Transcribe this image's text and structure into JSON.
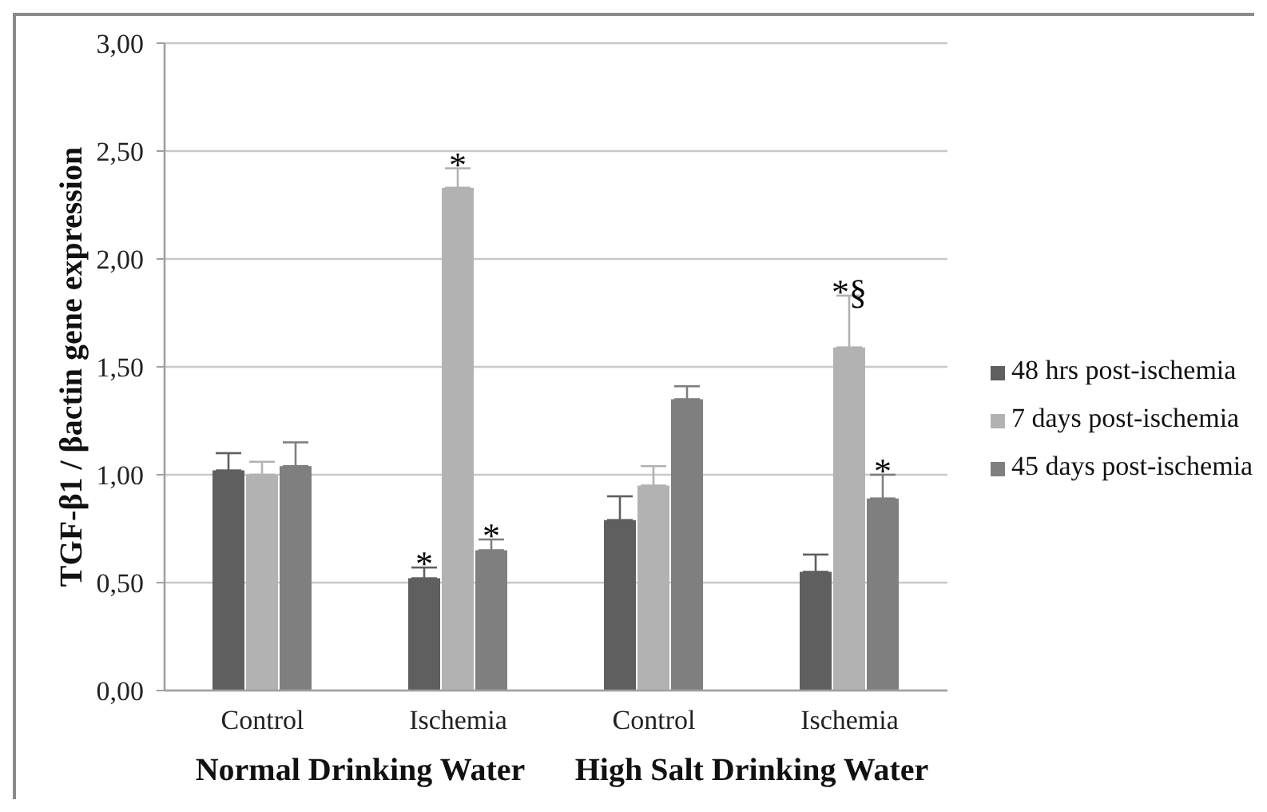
{
  "chart_data": {
    "type": "bar",
    "ylabel": "TGF-β1 / βactin gene expression",
    "categories": [
      "Control",
      "Ischemia",
      "Control",
      "Ischemia"
    ],
    "series": [
      {
        "name": "48 hrs post-ischemia",
        "color": "#5f5f5f",
        "values": [
          1.02,
          0.52,
          0.79,
          0.55
        ],
        "errors": [
          [
            1.02,
            1.1
          ],
          [
            0.52,
            0.57
          ],
          [
            0.79,
            0.9
          ],
          [
            0.55,
            0.63
          ]
        ],
        "value_labels": [
          null,
          "*",
          null,
          null
        ]
      },
      {
        "name": "7 days post-ischemia",
        "color": "#b2b2b2",
        "values": [
          1.0,
          2.33,
          0.95,
          1.59
        ],
        "errors": [
          [
            1.0,
            1.06
          ],
          [
            2.33,
            2.42
          ],
          [
            0.95,
            1.04
          ],
          [
            1.59,
            1.83
          ]
        ],
        "value_labels": [
          null,
          "*",
          null,
          "*§"
        ]
      },
      {
        "name": "45 days post-ischemia",
        "color": "#7f7f7f",
        "values": [
          1.04,
          0.65,
          1.35,
          0.89
        ],
        "errors": [
          [
            1.04,
            1.15
          ],
          [
            0.65,
            0.7
          ],
          [
            1.35,
            1.41
          ],
          [
            0.89,
            1.0
          ]
        ],
        "value_labels": [
          null,
          "*",
          null,
          "*"
        ]
      }
    ],
    "ylim": [
      0,
      3
    ],
    "yticks": [
      {
        "value": 0,
        "label": "0,00"
      },
      {
        "value": 0.5,
        "label": "0,50"
      },
      {
        "value": 1,
        "label": "1,00"
      },
      {
        "value": 1.5,
        "label": "1,50"
      },
      {
        "value": 2,
        "label": "2,00"
      },
      {
        "value": 2.5,
        "label": "2,50"
      },
      {
        "value": 3,
        "label": "3,00"
      }
    ],
    "grid": "y",
    "legend": "right",
    "annotations": [
      "Normal Drinking Water",
      "High Salt Drinking Water"
    ]
  }
}
